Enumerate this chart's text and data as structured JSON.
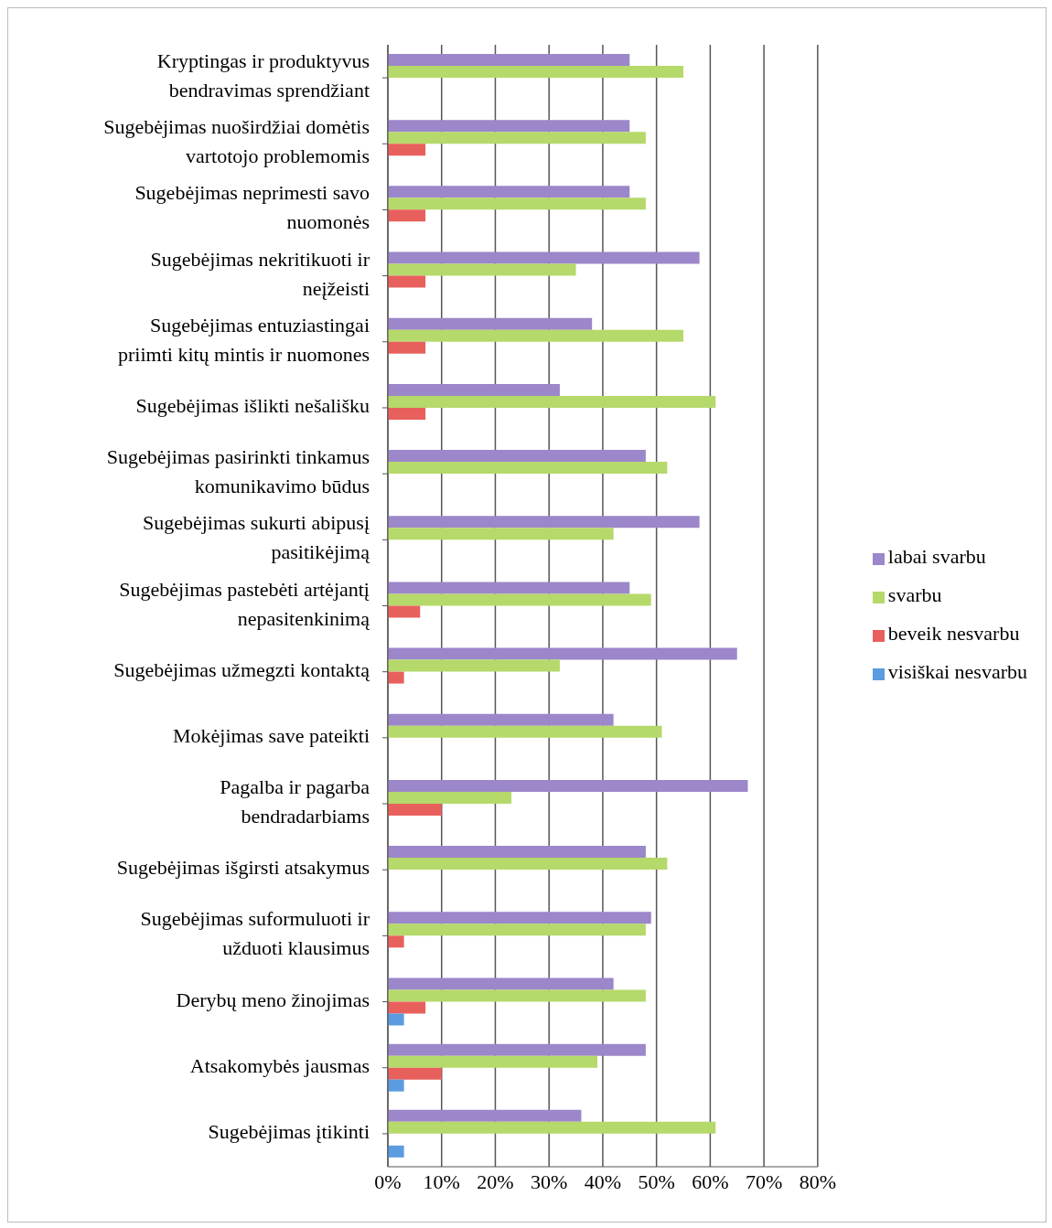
{
  "chart_data": {
    "type": "bar",
    "orientation": "horizontal",
    "categories": [
      "Kryptingas ir produktyvus bendravimas sprendžiant",
      "Sugebėjimas nuoširdžiai domėtis vartotojo problemomis",
      "Sugebėjimas neprimesti savo nuomonės",
      "Sugebėjimas nekritikuoti ir neįžeisti",
      "Sugebėjimas entuziastingai priimti kitų mintis ir nuomones",
      "Sugebėjimas išlikti nešališku",
      "Sugebėjimas pasirinkti tinkamus komunikavimo būdus",
      "Sugebėjimas sukurti abipusį pasitikėjimą",
      "Sugebėjimas pastebėti artėjantį nepasitenkinimą",
      "Sugebėjimas užmegzti kontaktą",
      "Mokėjimas save pateikti",
      "Pagalba ir pagarba bendradarbiams",
      "Sugebėjimas išgirsti atsakymus",
      "Sugebėjimas suformuluoti ir užduoti klausimus",
      "Derybų meno žinojimas",
      "Atsakomybės jausmas",
      "Sugebėjimas įtikinti"
    ],
    "series": [
      {
        "name": "labai svarbu",
        "color": "#9b87c9",
        "values": [
          45,
          45,
          45,
          58,
          38,
          32,
          48,
          58,
          45,
          65,
          42,
          67,
          48,
          49,
          42,
          48,
          36
        ]
      },
      {
        "name": "svarbu",
        "color": "#b5d96a",
        "values": [
          55,
          48,
          48,
          35,
          55,
          61,
          52,
          42,
          49,
          32,
          51,
          23,
          52,
          48,
          48,
          39,
          61
        ]
      },
      {
        "name": "beveik nesvarbu",
        "color": "#e8605c",
        "values": [
          null,
          7,
          7,
          7,
          7,
          7,
          null,
          null,
          6,
          3,
          null,
          10,
          null,
          3,
          7,
          10,
          null
        ]
      },
      {
        "name": "visiškai nesvarbu",
        "color": "#5b9be0",
        "values": [
          null,
          null,
          null,
          null,
          null,
          null,
          null,
          null,
          null,
          null,
          null,
          null,
          null,
          null,
          3,
          3,
          3
        ]
      }
    ],
    "xlim": [
      0,
      80
    ],
    "xticks": [
      {
        "value": 0,
        "label": "0%"
      },
      {
        "value": 10,
        "label": "10%"
      },
      {
        "value": 20,
        "label": "20%"
      },
      {
        "value": 30,
        "label": "30%"
      },
      {
        "value": 40,
        "label": "40%"
      },
      {
        "value": 50,
        "label": "50%"
      },
      {
        "value": 60,
        "label": "60%"
      },
      {
        "value": 70,
        "label": "70%"
      },
      {
        "value": 80,
        "label": "80%"
      }
    ],
    "grid": "x",
    "legend": "right"
  }
}
